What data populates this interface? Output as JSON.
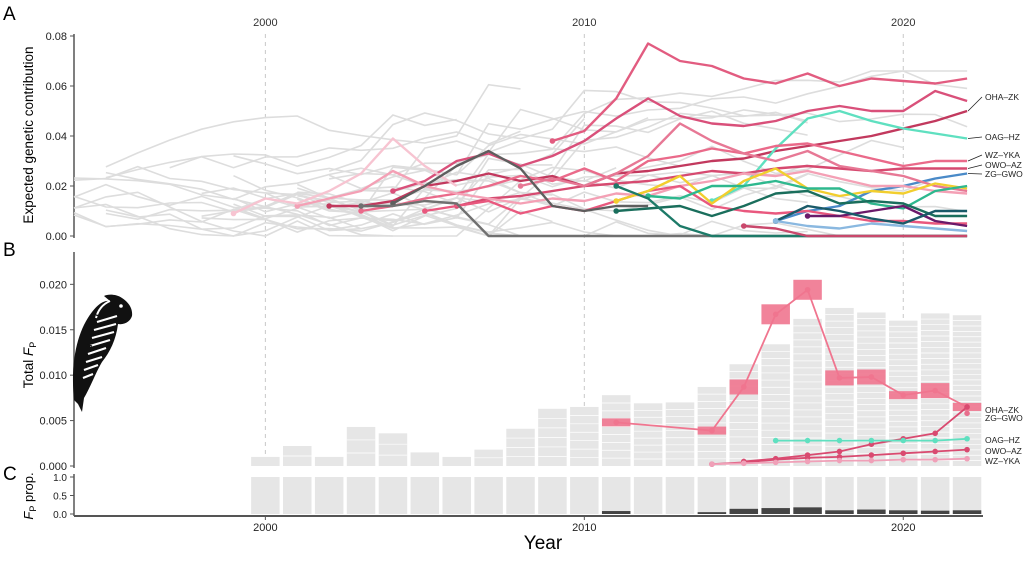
{
  "panel_labels": [
    "A",
    "B",
    "C"
  ],
  "year_ticks": [
    2000,
    2010,
    2020
  ],
  "x_title": "Year",
  "colors": {
    "background_lines": "#dddddd",
    "bars": "#e6e6e6",
    "bar_lines": "#ffffff",
    "pink_box": "#f0758f",
    "dark_bar": "#444444",
    "axis": "#555555",
    "guide": "#c8c8c8"
  },
  "chart_data": [
    {
      "type": "line",
      "panel": "A",
      "ylabel": "Expected genetic contribution",
      "ylim": [
        0,
        0.08
      ],
      "yticks": [
        "0.00",
        "0.02",
        "0.04",
        "0.06",
        "0.08"
      ],
      "xlim": [
        1994,
        2022.5
      ],
      "grid": false,
      "background_lineage_count": 32,
      "series": [
        {
          "name": "OHA–ZK",
          "color": "#c2395e",
          "x": [
            2002,
            2003,
            2004,
            2005,
            2006,
            2007,
            2008,
            2009,
            2010,
            2011,
            2012,
            2013,
            2014,
            2015,
            2016,
            2017,
            2018,
            2019,
            2020,
            2021,
            2022
          ],
          "y": [
            0.012,
            0.012,
            0.014,
            0.02,
            0.022,
            0.025,
            0.022,
            0.024,
            0.02,
            0.025,
            0.026,
            0.028,
            0.03,
            0.031,
            0.034,
            0.036,
            0.038,
            0.04,
            0.043,
            0.046,
            0.05
          ]
        },
        {
          "name": "OAG–HZ",
          "color": "#5fe0c0",
          "x": [
            2014,
            2015,
            2016,
            2017,
            2018,
            2019,
            2020,
            2021,
            2022
          ],
          "y": [
            0.014,
            0.02,
            0.035,
            0.047,
            0.05,
            0.046,
            0.043,
            0.041,
            0.039
          ]
        },
        {
          "name": "WZ–YKA",
          "color": "#ea6a8a",
          "x": [
            2003,
            2004,
            2005,
            2006,
            2007,
            2008,
            2009,
            2010,
            2011,
            2012,
            2013,
            2014,
            2015,
            2016,
            2017,
            2018,
            2019,
            2020,
            2021,
            2022
          ],
          "y": [
            0.01,
            0.012,
            0.015,
            0.017,
            0.02,
            0.024,
            0.022,
            0.027,
            0.022,
            0.03,
            0.032,
            0.035,
            0.033,
            0.036,
            0.037,
            0.034,
            0.031,
            0.028,
            0.03,
            0.03
          ]
        },
        {
          "name": "OWO–AZ",
          "color": "#d64a70",
          "x": [
            2006,
            2007,
            2008,
            2009,
            2010,
            2011,
            2012,
            2013,
            2014,
            2015,
            2016,
            2017,
            2018,
            2019,
            2020,
            2021,
            2022
          ],
          "y": [
            0.012,
            0.015,
            0.016,
            0.018,
            0.02,
            0.021,
            0.022,
            0.024,
            0.026,
            0.025,
            0.027,
            0.028,
            0.027,
            0.026,
            0.027,
            0.027,
            0.027
          ]
        },
        {
          "name": "ZG–GWO",
          "color": "#4a8ac8",
          "x": [
            2016,
            2017,
            2018,
            2019,
            2020,
            2021,
            2022
          ],
          "y": [
            0.006,
            0.01,
            0.012,
            0.018,
            0.02,
            0.023,
            0.025
          ]
        },
        {
          "name": "",
          "color": "#e25c80",
          "x": [
            2009,
            2010,
            2011,
            2012,
            2013,
            2014,
            2015,
            2016,
            2017,
            2018,
            2019,
            2020,
            2021,
            2022
          ],
          "y": [
            0.038,
            0.042,
            0.055,
            0.077,
            0.07,
            0.068,
            0.063,
            0.061,
            0.065,
            0.06,
            0.063,
            0.062,
            0.061,
            0.063
          ]
        },
        {
          "name": "",
          "color": "#d9507a",
          "x": [
            2004,
            2005,
            2006,
            2007,
            2008,
            2009,
            2010,
            2011,
            2012,
            2013,
            2014,
            2015,
            2016,
            2017,
            2018,
            2019,
            2020,
            2021,
            2022
          ],
          "y": [
            0.018,
            0.022,
            0.03,
            0.033,
            0.028,
            0.032,
            0.038,
            0.047,
            0.055,
            0.048,
            0.045,
            0.044,
            0.046,
            0.05,
            0.052,
            0.05,
            0.05,
            0.058,
            0.054
          ]
        },
        {
          "name": "",
          "color": "#f4a0b5",
          "x": [
            2001,
            2002,
            2003,
            2004,
            2005,
            2006,
            2007,
            2008,
            2009,
            2010,
            2011,
            2012,
            2013,
            2014,
            2015,
            2016,
            2017,
            2018,
            2019,
            2020,
            2021,
            2022
          ],
          "y": [
            0.012,
            0.015,
            0.018,
            0.026,
            0.02,
            0.017,
            0.015,
            0.013,
            0.015,
            0.014,
            0.017,
            0.016,
            0.02,
            0.022,
            0.025,
            0.024,
            0.026,
            0.023,
            0.02,
            0.02,
            0.018,
            0.017
          ]
        },
        {
          "name": "",
          "color": "#e77895",
          "x": [
            2008,
            2009,
            2010,
            2011,
            2012,
            2013,
            2014,
            2015,
            2016,
            2017,
            2018,
            2019,
            2020,
            2021,
            2022
          ],
          "y": [
            0.02,
            0.023,
            0.02,
            0.025,
            0.032,
            0.045,
            0.038,
            0.033,
            0.03,
            0.034,
            0.028,
            0.026,
            0.024,
            0.02,
            0.018
          ]
        },
        {
          "name": "",
          "color": "#e9587e",
          "x": [
            2005,
            2006,
            2007,
            2008,
            2009,
            2010,
            2011,
            2012,
            2013,
            2014,
            2015,
            2016,
            2017,
            2018,
            2019,
            2020,
            2021,
            2022
          ],
          "y": [
            0.01,
            0.012,
            0.014,
            0.009,
            0.012,
            0.01,
            0.014,
            0.018,
            0.02,
            0.012,
            0.01,
            0.009,
            0.01,
            0.008,
            0.006,
            0.006,
            0.005,
            0.005
          ]
        },
        {
          "name": "",
          "color": "#f7c4d1",
          "x": [
            1999,
            2000,
            2001,
            2002,
            2003,
            2004,
            2005,
            2006
          ],
          "y": [
            0.009,
            0.015,
            0.013,
            0.018,
            0.025,
            0.039,
            0.028,
            0.02
          ]
        },
        {
          "name": "",
          "color": "#5e5e5e",
          "x": [
            2004,
            2005,
            2006,
            2007,
            2008,
            2009,
            2010,
            2011,
            2012
          ],
          "y": [
            0.013,
            0.02,
            0.028,
            0.034,
            0.027,
            0.012,
            0.01,
            0.012,
            0.012
          ]
        },
        {
          "name": "",
          "color": "#707070",
          "x": [
            2003,
            2004,
            2005,
            2006,
            2007,
            2008,
            2009,
            2010,
            2011,
            2012,
            2013,
            2014,
            2015,
            2016,
            2017,
            2018,
            2019,
            2020,
            2021,
            2022
          ],
          "y": [
            0.012,
            0.012,
            0.014,
            0.013,
            0.0,
            0.0,
            0.0,
            0.0,
            0.0,
            0.0,
            0.0,
            0.0,
            0.0,
            0.0,
            0.0,
            0.0,
            0.0,
            0.0,
            0.0,
            0.0
          ]
        },
        {
          "name": "",
          "color": "#f2ce2e",
          "x": [
            2011,
            2012,
            2013,
            2014,
            2015,
            2016,
            2017,
            2018,
            2019,
            2020,
            2021,
            2022
          ],
          "y": [
            0.014,
            0.018,
            0.024,
            0.013,
            0.022,
            0.027,
            0.019,
            0.016,
            0.018,
            0.017,
            0.021,
            0.019
          ]
        },
        {
          "name": "",
          "color": "#2eb88e",
          "x": [
            2012,
            2013,
            2014,
            2015,
            2016,
            2017,
            2018,
            2019,
            2020,
            2021,
            2022
          ],
          "y": [
            0.016,
            0.015,
            0.02,
            0.02,
            0.022,
            0.019,
            0.019,
            0.013,
            0.011,
            0.018,
            0.02
          ]
        },
        {
          "name": "",
          "color": "#1a6e5c",
          "x": [
            2011,
            2012,
            2013,
            2014,
            2015,
            2016,
            2017,
            2018,
            2019,
            2020,
            2021,
            2022
          ],
          "y": [
            0.01,
            0.011,
            0.012,
            0.008,
            0.012,
            0.017,
            0.018,
            0.013,
            0.014,
            0.013,
            0.008,
            0.008
          ]
        },
        {
          "name": "",
          "color": "#1d7a68",
          "x": [
            2011,
            2012,
            2013,
            2014,
            2015,
            2016,
            2017,
            2018,
            2019,
            2020,
            2021,
            2022
          ],
          "y": [
            0.02,
            0.015,
            0.004,
            0.0,
            0.0,
            0.0,
            0.0,
            0.0,
            0.0,
            0.0,
            0.0,
            0.0
          ]
        },
        {
          "name": "",
          "color": "#6a1a6a",
          "x": [
            2017,
            2018,
            2019,
            2020,
            2021,
            2022
          ],
          "y": [
            0.008,
            0.008,
            0.01,
            0.012,
            0.006,
            0.004
          ]
        },
        {
          "name": "",
          "color": "#1a5a68",
          "x": [
            2016,
            2017,
            2018,
            2019,
            2020,
            2021,
            2022
          ],
          "y": [
            0.006,
            0.012,
            0.01,
            0.007,
            0.005,
            0.01,
            0.01
          ]
        },
        {
          "name": "",
          "color": "#8ab8e0",
          "x": [
            2016,
            2017,
            2018,
            2019,
            2020,
            2021,
            2022
          ],
          "y": [
            0.006,
            0.004,
            0.003,
            0.005,
            0.004,
            0.003,
            0.002
          ]
        },
        {
          "name": "",
          "color": "#c9486c",
          "x": [
            2015,
            2016,
            2017,
            2018,
            2019,
            2020,
            2021,
            2022
          ],
          "y": [
            0.004,
            0.003,
            0.0,
            0.0,
            0.0,
            0.0,
            0.0,
            0.0
          ]
        }
      ]
    },
    {
      "type": "bar",
      "panel": "B",
      "ylabel_main": "Total ",
      "ylabel_var": "F",
      "ylabel_sub": "P",
      "ylim": [
        0,
        0.024
      ],
      "yticks": [
        "0.000",
        "0.005",
        "0.010",
        "0.015",
        "0.020"
      ],
      "categories": [
        2000,
        2001,
        2002,
        2003,
        2004,
        2005,
        2006,
        2007,
        2008,
        2009,
        2010,
        2011,
        2012,
        2013,
        2014,
        2015,
        2016,
        2017,
        2018,
        2019,
        2020,
        2021,
        2022
      ],
      "values": [
        0.001,
        0.0022,
        0.001,
        0.0043,
        0.0036,
        0.0015,
        0.001,
        0.0018,
        0.0041,
        0.0063,
        0.0065,
        0.0078,
        0.0069,
        0.007,
        0.0087,
        0.0112,
        0.0134,
        0.0162,
        0.0174,
        0.0169,
        0.016,
        0.0168,
        0.0166
      ],
      "segments": [
        1,
        2,
        1,
        3,
        3,
        1,
        1,
        2,
        4,
        6,
        7,
        9,
        9,
        9,
        11,
        14,
        17,
        21,
        24,
        25,
        26,
        27,
        28
      ],
      "lineage_series": [
        {
          "name": "",
          "color": "#f0758f",
          "x": [
            2011,
            2014
          ],
          "y": [
            0.0048,
            0.0039
          ]
        },
        {
          "name": "",
          "color": "#f0758f",
          "x": [
            2014,
            2015,
            2016,
            2017,
            2018,
            2019,
            2020,
            2021,
            2022
          ],
          "y": [
            0.0039,
            0.0087,
            0.0167,
            0.0194,
            0.0097,
            0.0098,
            0.0078,
            0.0083,
            0.0065
          ]
        },
        {
          "name": "OHA–ZK",
          "color": "#d94a70",
          "x": [
            2015,
            2016,
            2017,
            2018,
            2019,
            2020,
            2021,
            2022
          ],
          "y": [
            0.0005,
            0.0008,
            0.0012,
            0.0016,
            0.0024,
            0.003,
            0.0036,
            0.0065
          ]
        },
        {
          "name": "ZG–GWO",
          "color": "#e86f8d",
          "x": [
            2022
          ],
          "y": [
            0.0058
          ]
        },
        {
          "name": "OAG–HZ",
          "color": "#5fe0c0",
          "x": [
            2016,
            2017,
            2018,
            2019,
            2020,
            2021,
            2022
          ],
          "y": [
            0.0028,
            0.0028,
            0.0028,
            0.0028,
            0.0028,
            0.0028,
            0.003
          ]
        },
        {
          "name": "OWO–AZ",
          "color": "#d94a70",
          "x": [
            2014,
            2015,
            2016,
            2017,
            2018,
            2019,
            2020,
            2021,
            2022
          ],
          "y": [
            0.0002,
            0.0004,
            0.0007,
            0.0009,
            0.001,
            0.0012,
            0.0014,
            0.0016,
            0.0018
          ]
        },
        {
          "name": "WZ–YKA",
          "color": "#f0a0b8",
          "x": [
            2014,
            2015,
            2016,
            2017,
            2018,
            2019,
            2020,
            2021,
            2022
          ],
          "y": [
            0.0002,
            0.0003,
            0.0004,
            0.0005,
            0.0006,
            0.0006,
            0.0007,
            0.0007,
            0.0008
          ]
        }
      ],
      "boxes": [
        {
          "x": 2011,
          "y": 0.0048
        },
        {
          "x": 2014,
          "y": 0.0039
        },
        {
          "x": 2015,
          "y": 0.0087
        },
        {
          "x": 2016,
          "y": 0.0167
        },
        {
          "x": 2017,
          "y": 0.0194
        },
        {
          "x": 2018,
          "y": 0.0097
        },
        {
          "x": 2019,
          "y": 0.0098
        },
        {
          "x": 2020,
          "y": 0.0078
        },
        {
          "x": 2021,
          "y": 0.0083
        },
        {
          "x": 2022,
          "y": 0.0065
        }
      ]
    },
    {
      "type": "bar",
      "panel": "C",
      "ylabel_var": "F",
      "ylabel_sub": "P",
      "ylabel_rest": " prop.",
      "ylim": [
        0,
        1
      ],
      "yticks": [
        "0.0",
        "0.5",
        "1.0"
      ],
      "categories": [
        2000,
        2001,
        2002,
        2003,
        2004,
        2005,
        2006,
        2007,
        2008,
        2009,
        2010,
        2011,
        2012,
        2013,
        2014,
        2015,
        2016,
        2017,
        2018,
        2019,
        2020,
        2021,
        2022
      ],
      "values": [
        1,
        1,
        1,
        1,
        1,
        1,
        1,
        1,
        1,
        1,
        1,
        1,
        1,
        1,
        1,
        1,
        1,
        1,
        1,
        1,
        1,
        1,
        1
      ],
      "dark_fraction": [
        0,
        0,
        0,
        0,
        0,
        0,
        0,
        0,
        0,
        0,
        0,
        0.08,
        0,
        0,
        0.05,
        0.14,
        0.16,
        0.18,
        0.1,
        0.12,
        0.1,
        0.09,
        0.1
      ]
    }
  ],
  "label_order": {
    "A": [
      "OHA–ZK",
      "OAG–HZ",
      "WZ–YKA",
      "OWO–AZ",
      "ZG–GWO"
    ],
    "B": [
      "OHA–ZK",
      "ZG–GWO",
      "OAG–HZ",
      "OWO–AZ",
      "WZ–YKA"
    ]
  }
}
